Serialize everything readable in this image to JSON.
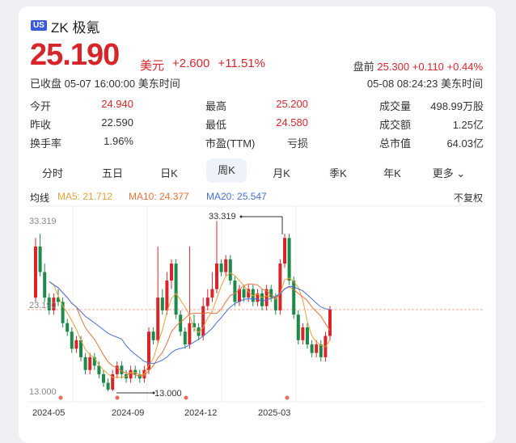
{
  "stock": {
    "market_badge": "US",
    "name": "ZK 极氪",
    "price": "25.190",
    "currency": "美元",
    "change": "+2.600",
    "change_pct": "+11.51%",
    "status": "已收盘 05-07 16:00:00 美东时间",
    "premarket_label": "盘前",
    "premarket_price": "25.300",
    "premarket_change": "+0.110",
    "premarket_pct": "+0.44%",
    "premarket_time": "05-08 08:24:23 美东时间"
  },
  "stats": [
    {
      "label": "今开",
      "value": "24.940",
      "color": "#d6262c"
    },
    {
      "label": "最高",
      "value": "25.200",
      "color": "#d6262c"
    },
    {
      "label": "成交量",
      "value": "498.99万股",
      "color": "#333333"
    },
    {
      "label": "昨收",
      "value": "22.590",
      "color": "#333333"
    },
    {
      "label": "最低",
      "value": "24.580",
      "color": "#d6262c"
    },
    {
      "label": "成交额",
      "value": "1.25亿",
      "color": "#333333"
    },
    {
      "label": "换手率",
      "value": "1.96%",
      "color": "#333333"
    },
    {
      "label": "市盈(TTM)",
      "value": "亏损",
      "color": "#333333"
    },
    {
      "label": "总市值",
      "value": "64.03亿",
      "color": "#333333"
    }
  ],
  "tabs": [
    "分时",
    "五日",
    "日K",
    "周K",
    "月K",
    "季K",
    "年K",
    "更多"
  ],
  "active_tab": "周K",
  "ma": {
    "label": "均线",
    "ma5": "MA5: 21.712",
    "ma10": "MA10: 24.377",
    "ma20": "MA20: 25.547",
    "adjust": "不复权",
    "ma5_color": "#e8a23a",
    "ma10_color": "#e8733a",
    "ma20_color": "#4a6fd6"
  },
  "chart_data": {
    "type": "candlestick",
    "y_high_label": "33.319",
    "y_mid_label": "23.190",
    "y_low_label": "13.000",
    "max_marker": "33.319",
    "min_marker": "13.000",
    "x_labels": [
      "2024-05",
      "2024-09",
      "2024-12",
      "2025-03"
    ],
    "ylim": [
      13.0,
      33.319
    ],
    "reference_price": 22.59,
    "candles": [
      [
        24.0,
        30.0,
        23.5,
        31.0
      ],
      [
        30.0,
        27.0,
        26.5,
        31.5
      ],
      [
        27.0,
        24.0,
        23.5,
        28.0
      ],
      [
        24.0,
        22.5,
        22.0,
        24.5
      ],
      [
        22.5,
        24.0,
        22.0,
        24.5
      ],
      [
        24.0,
        23.5,
        23.0,
        25.0
      ],
      [
        23.5,
        21.0,
        20.5,
        24.0
      ],
      [
        21.0,
        20.0,
        19.5,
        21.5
      ],
      [
        20.0,
        18.0,
        17.5,
        20.5
      ],
      [
        18.0,
        19.0,
        17.5,
        19.5
      ],
      [
        19.0,
        17.0,
        16.5,
        19.5
      ],
      [
        17.0,
        15.5,
        15.0,
        17.5
      ],
      [
        15.5,
        17.0,
        15.0,
        17.5
      ],
      [
        17.0,
        16.0,
        15.5,
        17.5
      ],
      [
        16.0,
        15.0,
        14.5,
        16.5
      ],
      [
        15.0,
        14.0,
        13.5,
        15.5
      ],
      [
        14.0,
        13.2,
        13.0,
        14.5
      ],
      [
        13.2,
        15.0,
        13.0,
        15.5
      ],
      [
        15.0,
        16.0,
        14.5,
        16.5
      ],
      [
        16.0,
        15.0,
        14.5,
        16.5
      ],
      [
        15.0,
        14.5,
        14.0,
        15.5
      ],
      [
        14.5,
        15.5,
        14.0,
        16.0
      ],
      [
        15.5,
        15.0,
        14.5,
        16.0
      ],
      [
        15.0,
        14.5,
        14.0,
        15.5
      ],
      [
        14.5,
        15.5,
        14.0,
        16.0
      ],
      [
        15.5,
        20.0,
        15.0,
        20.5
      ],
      [
        20.0,
        19.0,
        18.5,
        20.5
      ],
      [
        19.0,
        24.0,
        18.5,
        30.0
      ],
      [
        24.0,
        22.5,
        22.0,
        25.0
      ],
      [
        22.5,
        26.0,
        22.0,
        27.0
      ],
      [
        26.0,
        28.0,
        25.0,
        28.5
      ],
      [
        28.0,
        22.0,
        21.5,
        28.5
      ],
      [
        22.0,
        20.0,
        19.5,
        22.5
      ],
      [
        20.0,
        18.5,
        18.0,
        20.5
      ],
      [
        18.5,
        21.0,
        18.0,
        30.0
      ],
      [
        21.0,
        20.5,
        20.0,
        22.0
      ],
      [
        20.5,
        19.5,
        19.0,
        21.0
      ],
      [
        19.5,
        23.0,
        19.0,
        24.0
      ],
      [
        23.0,
        24.0,
        22.5,
        25.0
      ],
      [
        24.0,
        25.0,
        23.5,
        27.0
      ],
      [
        25.0,
        28.0,
        24.5,
        33.0
      ],
      [
        28.0,
        27.0,
        26.5,
        28.5
      ],
      [
        27.0,
        28.5,
        26.5,
        29.0
      ],
      [
        28.5,
        26.0,
        25.5,
        29.0
      ],
      [
        26.0,
        23.5,
        23.0,
        26.5
      ],
      [
        23.5,
        25.0,
        23.0,
        25.5
      ],
      [
        25.0,
        24.0,
        23.5,
        25.5
      ],
      [
        24.0,
        25.0,
        23.5,
        25.5
      ],
      [
        25.0,
        23.5,
        23.0,
        25.5
      ],
      [
        23.5,
        24.5,
        23.0,
        25.0
      ],
      [
        24.5,
        23.0,
        22.5,
        25.0
      ],
      [
        23.0,
        25.0,
        22.5,
        25.5
      ],
      [
        25.0,
        24.0,
        23.5,
        25.5
      ],
      [
        24.0,
        22.5,
        22.0,
        24.5
      ],
      [
        22.5,
        28.0,
        22.0,
        28.5
      ],
      [
        28.0,
        31.0,
        27.5,
        31.5
      ],
      [
        31.0,
        26.0,
        25.5,
        31.5
      ],
      [
        26.0,
        22.0,
        21.5,
        26.5
      ],
      [
        22.0,
        19.0,
        18.5,
        22.5
      ],
      [
        19.0,
        20.5,
        18.5,
        21.0
      ],
      [
        20.5,
        18.5,
        18.0,
        21.0
      ],
      [
        18.5,
        17.5,
        17.0,
        19.0
      ],
      [
        17.5,
        18.5,
        17.0,
        19.0
      ],
      [
        18.5,
        17.0,
        16.5,
        19.0
      ],
      [
        17.0,
        19.5,
        16.5,
        20.0
      ],
      [
        19.5,
        22.6,
        19.0,
        23.0
      ]
    ]
  }
}
